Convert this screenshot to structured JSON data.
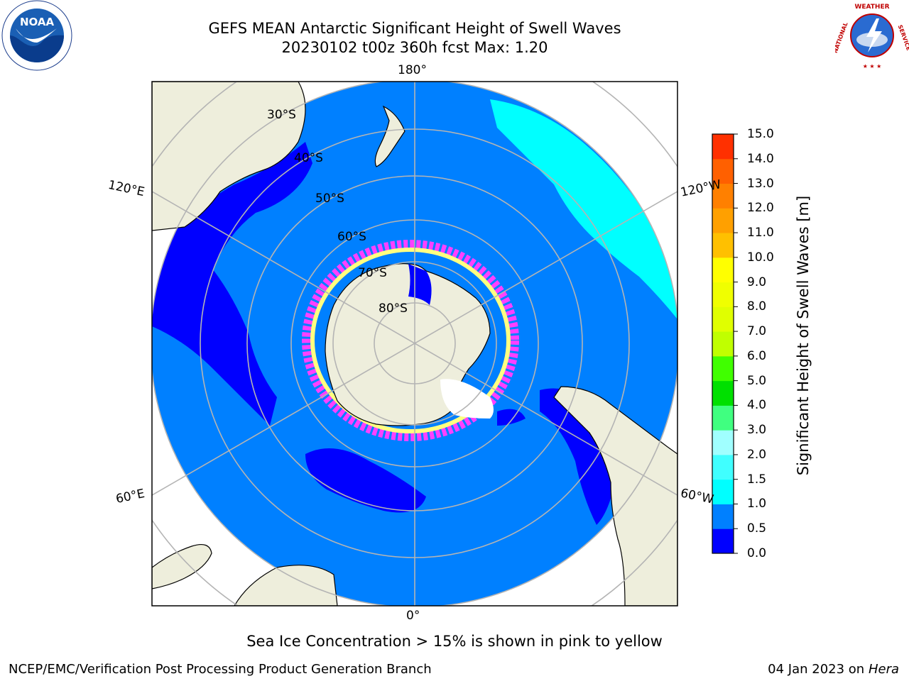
{
  "title": {
    "line1": "GEFS MEAN Antarctic Significant Height of Swell Waves",
    "line2": "20230102 t00z 360h fcst   Max: 1.20"
  },
  "logos": {
    "left": "noaa-logo",
    "right": "national-weather-service-logo"
  },
  "map": {
    "projection": "south-polar-stereographic",
    "lon_labels": {
      "top": "180°",
      "bottom": "0°",
      "upper_left": "120°E",
      "upper_right": "120°W",
      "lower_left": "60°E",
      "lower_right": "60°W"
    },
    "lat_labels": [
      "30°S",
      "40°S",
      "50°S",
      "60°S",
      "70°S",
      "80°S"
    ],
    "colors": {
      "land": "#eeeedc",
      "ocean_base": "#0080ff",
      "low_swell": "#0000ff",
      "mid_swell": "#00ffff",
      "ice_edge_pink": "#ff40ff",
      "ice_edge_yellow": "#ffff80",
      "ice_white": "#ffffff",
      "gridline": "#b4b4b4"
    }
  },
  "colorbar": {
    "title": "Significant Height of Swell Waves [m]",
    "ticks": [
      "15.0",
      "14.0",
      "13.0",
      "12.0",
      "11.0",
      "10.0",
      "9.0",
      "8.0",
      "7.0",
      "6.0",
      "5.0",
      "4.0",
      "3.0",
      "2.0",
      "1.5",
      "1.0",
      "0.5",
      "0.0"
    ],
    "levels": [
      {
        "value": 0.0,
        "color": "#0000ff"
      },
      {
        "value": 0.5,
        "color": "#0080ff"
      },
      {
        "value": 1.0,
        "color": "#00ffff"
      },
      {
        "value": 1.5,
        "color": "#40ffff"
      },
      {
        "value": 2.0,
        "color": "#a0ffff"
      },
      {
        "value": 3.0,
        "color": "#40ff80"
      },
      {
        "value": 4.0,
        "color": "#00e000"
      },
      {
        "value": 5.0,
        "color": "#40ff00"
      },
      {
        "value": 6.0,
        "color": "#c0ff00"
      },
      {
        "value": 7.0,
        "color": "#e0ff00"
      },
      {
        "value": 8.0,
        "color": "#f0ff00"
      },
      {
        "value": 9.0,
        "color": "#ffff00"
      },
      {
        "value": 10.0,
        "color": "#ffc000"
      },
      {
        "value": 11.0,
        "color": "#ffa000"
      },
      {
        "value": 12.0,
        "color": "#ff8000"
      },
      {
        "value": 13.0,
        "color": "#ff6000"
      },
      {
        "value": 14.0,
        "color": "#ff3000"
      },
      {
        "value": 15.0,
        "color": "#ff0000"
      }
    ]
  },
  "caption": "Sea Ice Concentration > 15% is shown in pink to yellow",
  "footer": {
    "left": "NCEP/EMC/Verification Post Processing Product Generation Branch",
    "right_date": "04 Jan 2023 on ",
    "right_host": "Hera"
  }
}
